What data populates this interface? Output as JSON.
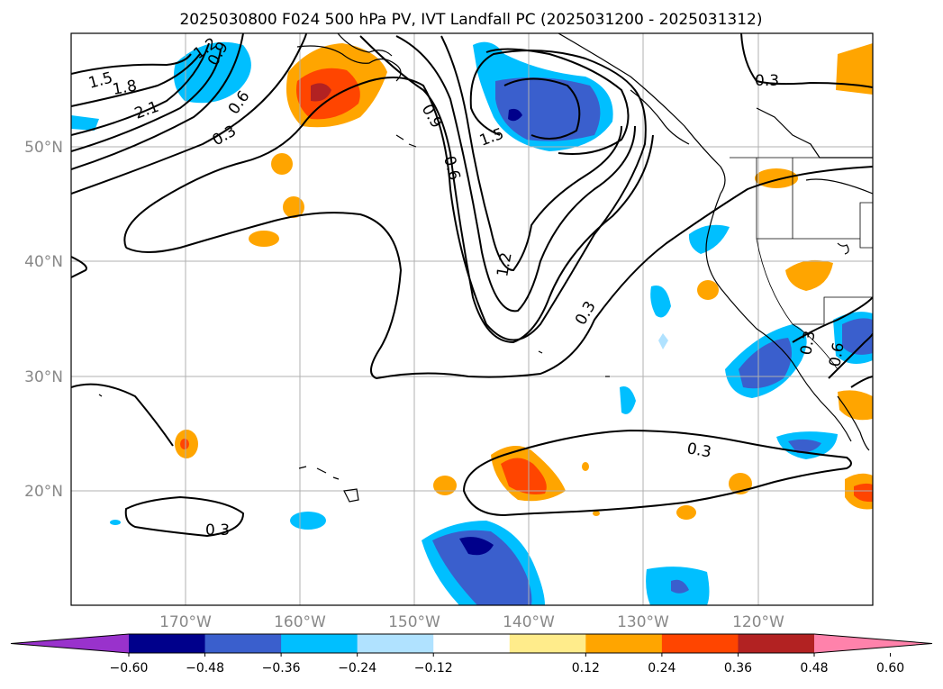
{
  "title": "2025030800 F024 500 hPa PV, IVT Landfall PC (2025031200 - 2025031312)",
  "lat_labels": [
    "50°N",
    "40°N",
    "30°N",
    "20°N"
  ],
  "lon_labels": [
    "170°W",
    "160°W",
    "150°W",
    "140°W",
    "130°W",
    "120°W"
  ],
  "map_extent": {
    "lon_min": -180,
    "lon_max": -110,
    "lat_min": 10,
    "lat_max": 60
  },
  "colorbar": {
    "ticks": [
      "−0.60",
      "−0.48",
      "−0.36",
      "−0.24",
      "−0.12",
      "0.12",
      "0.24",
      "0.36",
      "0.48",
      "0.60"
    ],
    "colors": [
      "#9932cc",
      "#00008b",
      "#3a5fcd",
      "#00bfff",
      "#b0e2ff",
      "#ffffff",
      "#ffec8b",
      "#ffa500",
      "#ff4500",
      "#b22222",
      "#ff82ab"
    ]
  },
  "contour_labels": [
    "1.2",
    "0.9",
    "1.5",
    "1.8",
    "2.1",
    "0.6",
    "0.3",
    "0.9",
    "0.6",
    "1.5",
    "1.2",
    "0.3",
    "0.3",
    "0.3",
    "0.3",
    "0.3",
    "0.6"
  ]
}
